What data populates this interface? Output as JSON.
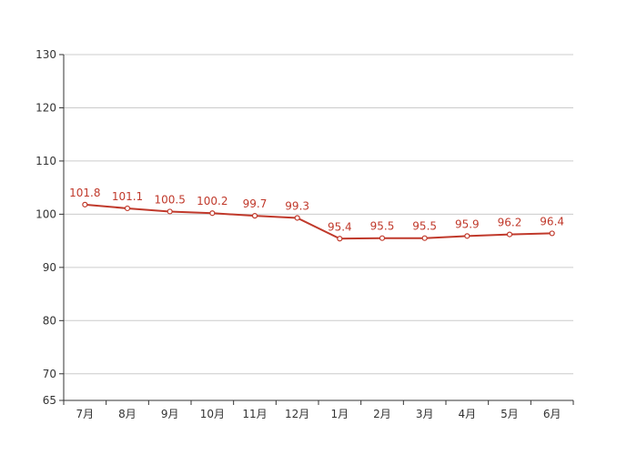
{
  "chart_data": {
    "type": "line",
    "categories": [
      "7月",
      "8月",
      "9月",
      "10月",
      "11月",
      "12月",
      "1月",
      "2月",
      "3月",
      "4月",
      "5月",
      "6月"
    ],
    "series": [
      {
        "values": [
          101.8,
          101.1,
          100.5,
          100.2,
          99.7,
          99.3,
          95.4,
          95.5,
          95.5,
          95.9,
          96.2,
          96.4
        ]
      }
    ],
    "data_labels": [
      "101.8",
      "101.1",
      "100.5",
      "100.2",
      "99.7",
      "99.3",
      "95.4",
      "95.5",
      "95.5",
      "95.9",
      "96.2",
      "96.4"
    ],
    "y_ticks": [
      "65",
      "70",
      "80",
      "90",
      "100",
      "110",
      "120",
      "130"
    ],
    "y_tick_values": [
      65,
      70,
      80,
      90,
      100,
      110,
      120,
      130
    ],
    "ylim": [
      65,
      130
    ],
    "grid": true,
    "legend": "none",
    "colors": {
      "line": "#c0392b",
      "grid": "#cccccc",
      "axis": "#333333",
      "label": "#c0392b"
    }
  }
}
